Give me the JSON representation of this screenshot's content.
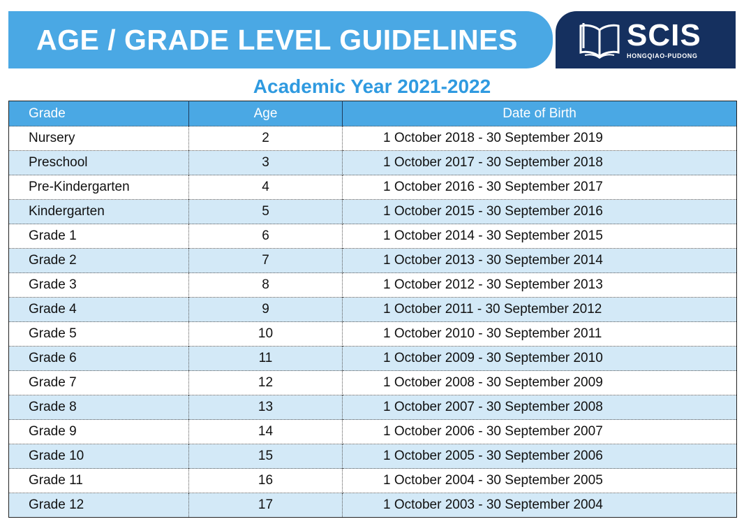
{
  "header": {
    "title": "AGE / GRADE LEVEL GUIDELINES",
    "logo_text": "SCIS",
    "logo_subtext": "HONGQIAO-PUDONG",
    "logo_icon": "open-book-icon"
  },
  "subtitle": "Academic Year 2021-2022",
  "table": {
    "columns": [
      "Grade",
      "Age",
      "Date of Birth"
    ],
    "rows": [
      {
        "grade": "Nursery",
        "age": "2",
        "dob": "1 October 2018 - 30 September 2019"
      },
      {
        "grade": "Preschool",
        "age": "3",
        "dob": "1 October 2017 - 30 September 2018"
      },
      {
        "grade": "Pre-Kindergarten",
        "age": "4",
        "dob": "1 October 2016 - 30 September 2017"
      },
      {
        "grade": "Kindergarten",
        "age": "5",
        "dob": "1 October 2015 - 30 September 2016"
      },
      {
        "grade": "Grade 1",
        "age": "6",
        "dob": "1 October 2014 - 30 September 2015"
      },
      {
        "grade": "Grade 2",
        "age": "7",
        "dob": "1 October 2013 - 30 September 2014"
      },
      {
        "grade": "Grade 3",
        "age": "8",
        "dob": "1 October 2012 - 30 September 2013"
      },
      {
        "grade": "Grade 4",
        "age": "9",
        "dob": "1 October 2011 - 30 September 2012"
      },
      {
        "grade": "Grade 5",
        "age": "10",
        "dob": "1 October 2010 - 30 September 2011"
      },
      {
        "grade": "Grade 6",
        "age": "11",
        "dob": "1 October 2009 - 30 September 2010"
      },
      {
        "grade": "Grade 7",
        "age": "12",
        "dob": "1 October 2008 - 30 September 2009"
      },
      {
        "grade": "Grade 8",
        "age": "13",
        "dob": "1 October 2007 - 30 September 2008"
      },
      {
        "grade": "Grade 9",
        "age": "14",
        "dob": "1 October 2006 - 30 September 2007"
      },
      {
        "grade": "Grade 10",
        "age": "15",
        "dob": "1 October 2005 - 30 September 2006"
      },
      {
        "grade": "Grade 11",
        "age": "16",
        "dob": "1 October 2004 - 30 September 2005"
      },
      {
        "grade": "Grade 12",
        "age": "17",
        "dob": "1 October 2003 - 30 September 2004"
      }
    ]
  },
  "colors": {
    "banner_blue": "#4aa8e4",
    "logo_navy": "#15305f",
    "subtitle_blue": "#2f9ae0",
    "row_alt": "#d3e9f7"
  }
}
